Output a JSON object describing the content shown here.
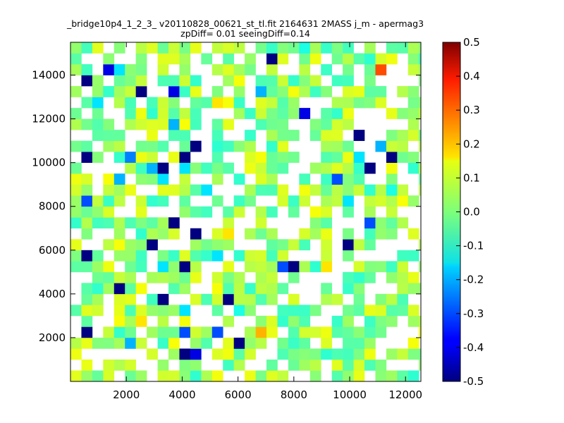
{
  "chart_data": {
    "type": "heatmap",
    "title": "_bridge10p4_1_2_3_ v20110828_00621_st_tl.fit 2164631 2MASS j_m - apermag3",
    "subtitle": "zpDiff= 0.01 seeingDiff=0.14",
    "xlabel": "",
    "ylabel": "",
    "xlim": [
      0,
      12550
    ],
    "ylim": [
      0,
      15500
    ],
    "xticks": [
      2000,
      4000,
      6000,
      8000,
      10000,
      12000
    ],
    "yticks": [
      2000,
      4000,
      6000,
      8000,
      10000,
      12000,
      14000
    ],
    "colormap": "jet",
    "clim": [
      -0.5,
      0.5
    ],
    "colorbar_ticks": [
      0.5,
      0.4,
      0.3,
      0.2,
      0.1,
      0.0,
      -0.1,
      -0.2,
      -0.3,
      -0.4,
      -0.5
    ],
    "cell_size": [
      390,
      500
    ],
    "grid": false,
    "cells": [
      [
        1,
        4,
        -0.5
      ],
      [
        1,
        11,
        -0.5
      ],
      [
        1,
        16,
        -0.3
      ],
      [
        1,
        20,
        -0.5
      ],
      [
        1,
        27,
        -0.5
      ],
      [
        4,
        8,
        -0.5
      ],
      [
        2,
        25,
        -0.15
      ],
      [
        9,
        26,
        -0.4
      ],
      [
        10,
        20,
        -0.5
      ],
      [
        9,
        14,
        -0.5
      ],
      [
        11,
        21,
        -0.5
      ],
      [
        8,
        19,
        -0.5
      ],
      [
        8,
        18,
        -0.15
      ],
      [
        7,
        12,
        -0.5
      ],
      [
        7,
        19,
        -0.2
      ],
      [
        5,
        3,
        -0.2
      ],
      [
        5,
        20,
        -0.25
      ],
      [
        8,
        7,
        -0.5
      ],
      [
        3,
        28,
        -0.4
      ],
      [
        4,
        28,
        -0.15
      ],
      [
        9,
        23,
        -0.2
      ],
      [
        4,
        18,
        -0.2
      ],
      [
        6,
        26,
        -0.5
      ],
      [
        11,
        13,
        -0.5
      ],
      [
        14,
        7,
        -0.5
      ],
      [
        13,
        4,
        -0.3
      ],
      [
        15,
        3,
        -0.5
      ],
      [
        15,
        6,
        -0.1
      ],
      [
        10,
        2,
        -0.5
      ],
      [
        10,
        6,
        -0.15
      ],
      [
        10,
        10,
        -0.5
      ],
      [
        10,
        19,
        -0.15
      ],
      [
        8,
        10,
        -0.15
      ],
      [
        18,
        29,
        -0.5
      ],
      [
        17,
        26,
        -0.2
      ],
      [
        21,
        30,
        -0.1
      ],
      [
        21,
        24,
        -0.4
      ],
      [
        20,
        10,
        -0.5
      ],
      [
        24,
        18,
        -0.3
      ],
      [
        19,
        10,
        -0.3
      ],
      [
        26,
        22,
        -0.5
      ],
      [
        27,
        19,
        -0.5
      ],
      [
        26,
        20,
        -0.15
      ],
      [
        25,
        16,
        -0.15
      ],
      [
        28,
        21,
        -0.2
      ],
      [
        29,
        20,
        -0.5
      ],
      [
        29,
        17,
        -0.1
      ],
      [
        24,
        31,
        -0.15
      ],
      [
        28,
        28,
        0.3
      ],
      [
        6,
        5,
        0.15
      ],
      [
        13,
        11,
        -0.15
      ],
      [
        3,
        3,
        0.0
      ],
      [
        17,
        4,
        0.2
      ],
      [
        23,
        10,
        0.15
      ],
      [
        32,
        12,
        0.05
      ],
      [
        25,
        12,
        -0.5
      ],
      [
        27,
        14,
        -0.3
      ],
      [
        14,
        13,
        0.15
      ],
      [
        13,
        25,
        0.15
      ],
      [
        30,
        9,
        0.05
      ],
      [
        32,
        8,
        0.02
      ],
      [
        0,
        12,
        0.1
      ],
      [
        21,
        5,
        -0.05
      ],
      [
        19,
        2,
        -0.05
      ],
      [
        11,
        2,
        -0.4
      ],
      [
        10,
        4,
        -0.3
      ],
      [
        12,
        17,
        -0.15
      ]
    ],
    "background_cells": {
      "fill_pattern": "sparse",
      "value_range": [
        -0.08,
        0.12
      ]
    }
  }
}
